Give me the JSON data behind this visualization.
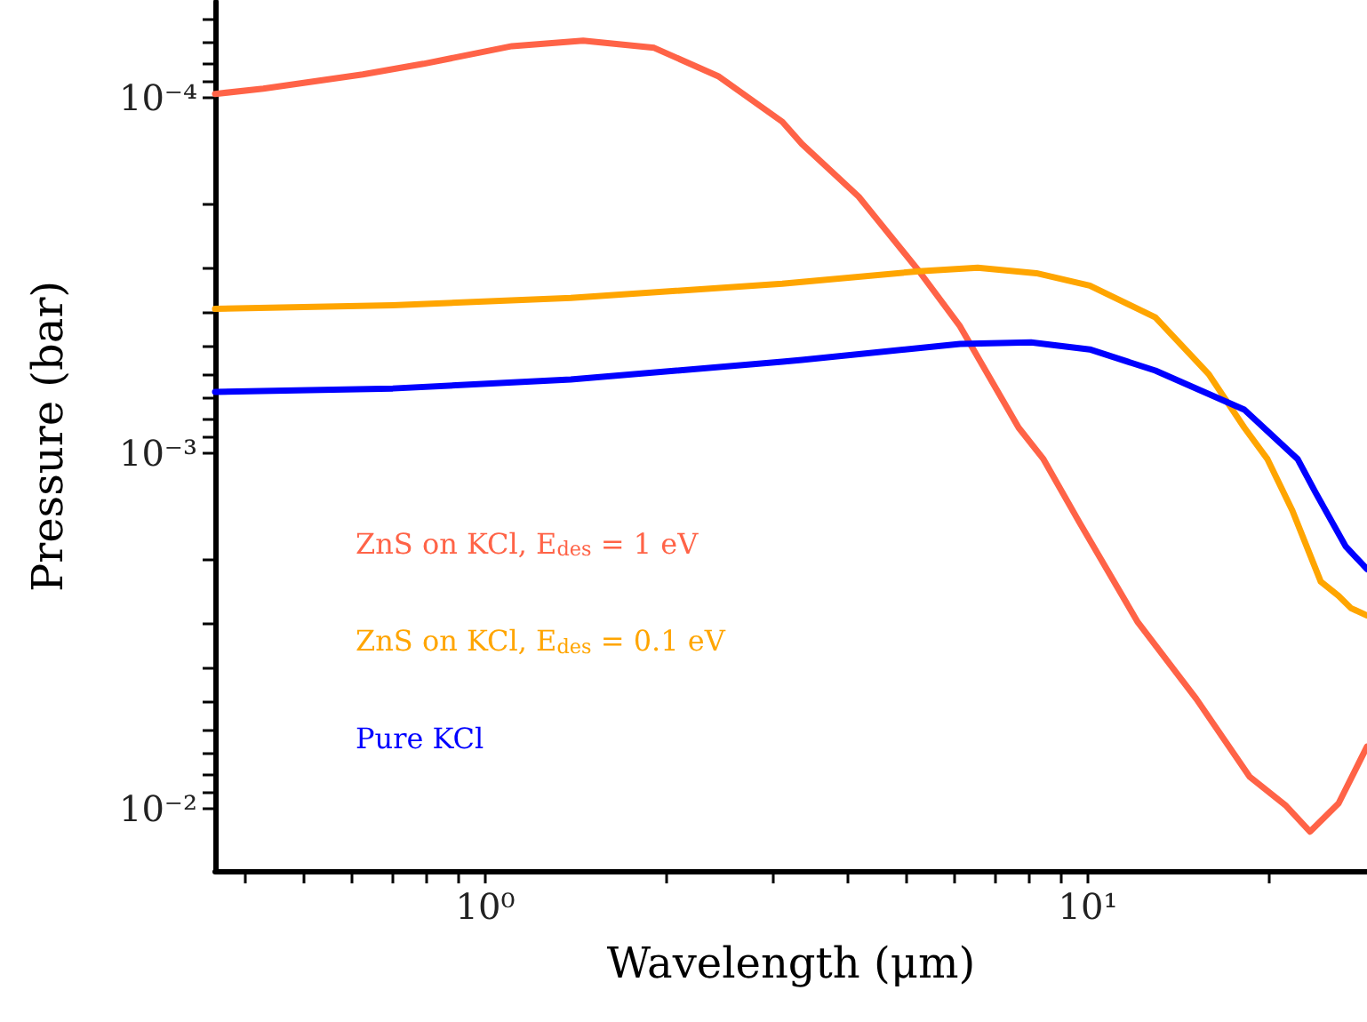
{
  "chart_data": {
    "type": "line",
    "xlabel": "Wavelength (μm)",
    "ylabel": "Pressure (bar)",
    "log": "xy",
    "legend": "left",
    "grid": false,
    "marker": "none",
    "line_style": "solid",
    "xlim": [
      0.356,
      29.05
    ],
    "ylim": [
      0.01496,
      5.38e-05
    ],
    "xticks": [
      {
        "value": 0.4,
        "label": null
      },
      {
        "value": 0.5,
        "label": null
      },
      {
        "value": 0.6,
        "label": null
      },
      {
        "value": 0.7,
        "label": null
      },
      {
        "value": 0.8,
        "label": null
      },
      {
        "value": 0.9,
        "label": null
      },
      {
        "value": 1,
        "label": "10⁰"
      },
      {
        "value": 2,
        "label": null
      },
      {
        "value": 3,
        "label": null
      },
      {
        "value": 4,
        "label": null
      },
      {
        "value": 5,
        "label": null
      },
      {
        "value": 6,
        "label": null
      },
      {
        "value": 7,
        "label": null
      },
      {
        "value": 8,
        "label": null
      },
      {
        "value": 9,
        "label": null
      },
      {
        "value": 10,
        "label": "10¹"
      },
      {
        "value": 20,
        "label": null
      }
    ],
    "yticks": [
      {
        "value": 6e-05,
        "label": null
      },
      {
        "value": 7e-05,
        "label": null
      },
      {
        "value": 8e-05,
        "label": null
      },
      {
        "value": 9e-05,
        "label": null
      },
      {
        "value": 0.0001,
        "label": "10⁻⁴"
      },
      {
        "value": 0.0002,
        "label": null
      },
      {
        "value": 0.0003,
        "label": null
      },
      {
        "value": 0.0004,
        "label": null
      },
      {
        "value": 0.0005,
        "label": null
      },
      {
        "value": 0.0006,
        "label": null
      },
      {
        "value": 0.0007,
        "label": null
      },
      {
        "value": 0.0008,
        "label": null
      },
      {
        "value": 0.0009,
        "label": null
      },
      {
        "value": 0.001,
        "label": "10⁻³"
      },
      {
        "value": 0.002,
        "label": null
      },
      {
        "value": 0.003,
        "label": null
      },
      {
        "value": 0.004,
        "label": null
      },
      {
        "value": 0.005,
        "label": null
      },
      {
        "value": 0.006,
        "label": null
      },
      {
        "value": 0.007,
        "label": null
      },
      {
        "value": 0.008,
        "label": null
      },
      {
        "value": 0.009,
        "label": null
      },
      {
        "value": 0.01,
        "label": "10⁻²"
      }
    ],
    "series": [
      {
        "name": "ZnS on KCl, E$_{des}$ = 1 eV",
        "color": "#ff6347",
        "x": [
          0.356,
          0.428,
          0.626,
          0.789,
          1.107,
          1.453,
          1.906,
          2.434,
          3.11,
          3.351,
          4.164,
          5.246,
          6.134,
          7.674,
          8.438,
          9.667,
          12.1,
          15.13,
          18.55,
          21.26,
          23.37,
          26.06,
          29.05
        ],
        "values": [
          9.77e-05,
          9.44e-05,
          8.61e-05,
          8.04e-05,
          7.17e-05,
          6.92e-05,
          7.25e-05,
          8.71e-05,
          0.000117,
          0.000135,
          0.00019,
          0.000308,
          0.00044,
          0.000848,
          0.00104,
          0.00156,
          0.00299,
          0.00491,
          0.00813,
          0.00977,
          0.0116,
          0.00966,
          0.00669
        ]
      },
      {
        "name": "ZnS on KCl, E$_{des}$ = 0.1 eV",
        "color": "#ffa500",
        "x": [
          0.356,
          0.702,
          1.386,
          3.11,
          3.351,
          5.246,
          6.563,
          8.212,
          10.07,
          12.94,
          15.87,
          18.18,
          19.86,
          21.84,
          24.35,
          26.06,
          27.33,
          29.05
        ],
        "values": [
          0.000393,
          0.000384,
          0.000366,
          0.000334,
          0.00033,
          0.000308,
          0.000301,
          0.000312,
          0.000338,
          0.000415,
          0.0006,
          0.000848,
          0.00104,
          0.00145,
          0.0023,
          0.00252,
          0.00273,
          0.00286
        ]
      },
      {
        "name": "Pure KCl",
        "color": "#0000ff",
        "x": [
          0.356,
          0.702,
          1.386,
          3.11,
          3.351,
          6.134,
          8.045,
          10.07,
          12.94,
          18.18,
          19.86,
          22.29,
          23.86,
          26.78,
          29.05
        ],
        "values": [
          0.000673,
          0.000658,
          0.000621,
          0.000553,
          0.000547,
          0.000493,
          0.000488,
          0.000511,
          0.000586,
          0.000755,
          0.000867,
          0.00104,
          0.00129,
          0.00183,
          0.00212
        ]
      }
    ]
  }
}
